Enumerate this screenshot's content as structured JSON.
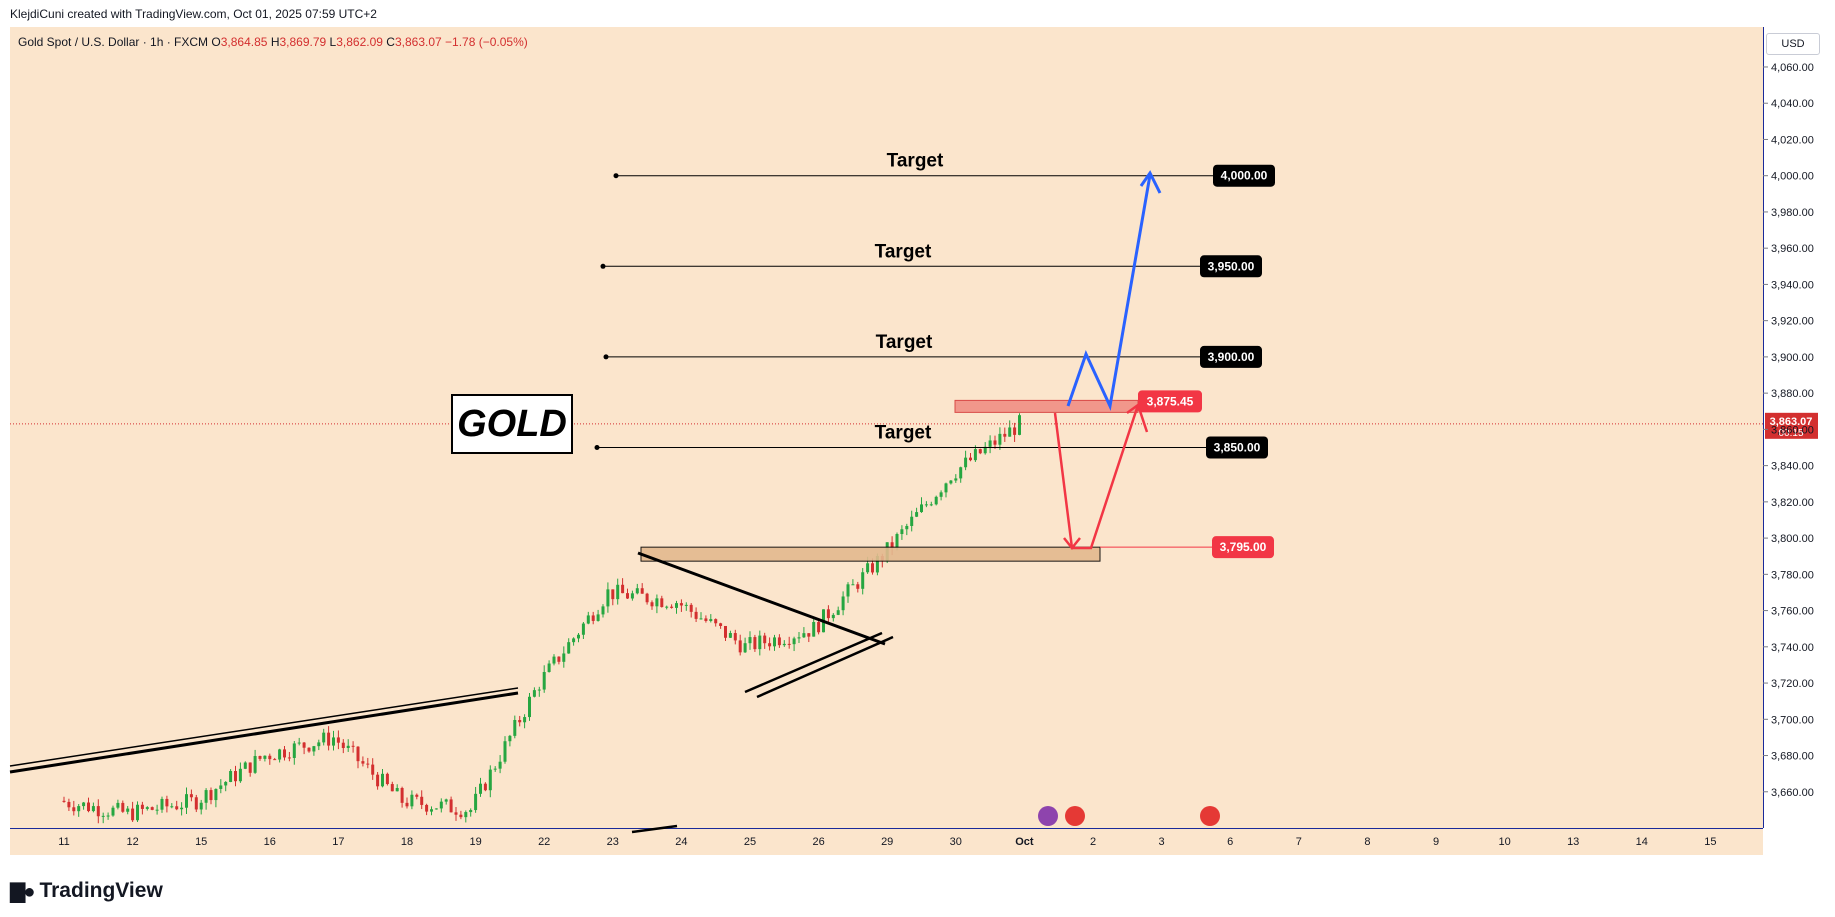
{
  "header": {
    "attribution": "KlejdiCuni created with TradingView.com, Oct 01, 2025 07:59 UTC+2"
  },
  "legend": {
    "symbol": "Gold Spot / U.S. Dollar · 1h · FXCM",
    "open_label": "O",
    "open": "3,864.85",
    "high_label": "H",
    "high": "3,869.79",
    "low_label": "L",
    "low": "3,862.09",
    "close_label": "C",
    "close": "3,863.07",
    "change": "−1.78 (−0.05%)"
  },
  "currency": "USD",
  "current_price": {
    "value": "3,863.07",
    "countdown": "00:15"
  },
  "annotation_title": "GOLD",
  "footer": {
    "brand": "TradingView"
  },
  "colors": {
    "background": "#fbe5cc",
    "bull_candle": "#26a641",
    "bear_candle": "#d32f2f",
    "resistance_zone": "#f08a80",
    "support_zone": "#e3b98f",
    "bullish_path": "#2962ff",
    "bearish_path": "#f23645",
    "axis_line": "#1a2a9a"
  },
  "chart_data": {
    "type": "candlestick",
    "symbol": "XAUUSD",
    "timeframe": "1h",
    "ylim": [
      3650,
      4070
    ],
    "y_ticks": [
      "4,060.00",
      "4,040.00",
      "4,020.00",
      "4,000.00",
      "3,980.00",
      "3,960.00",
      "3,940.00",
      "3,920.00",
      "3,900.00",
      "3,880.00",
      "3,860.00",
      "3,840.00",
      "3,820.00",
      "3,800.00",
      "3,780.00",
      "3,760.00",
      "3,740.00",
      "3,720.00",
      "3,700.00",
      "3,680.00",
      "3,660.00"
    ],
    "x_ticks": [
      "11",
      "12",
      "15",
      "16",
      "17",
      "18",
      "19",
      "22",
      "23",
      "24",
      "25",
      "26",
      "29",
      "30",
      "Oct",
      "2",
      "3",
      "6",
      "7",
      "8",
      "9",
      "10",
      "13",
      "14",
      "15"
    ],
    "price_path_daily_close": [
      {
        "date": "11",
        "close": 3655
      },
      {
        "date": "12",
        "close": 3648
      },
      {
        "date": "15",
        "close": 3655
      },
      {
        "date": "16",
        "close": 3680
      },
      {
        "date": "17",
        "close": 3690
      },
      {
        "date": "18",
        "close": 3655
      },
      {
        "date": "19",
        "close": 3650
      },
      {
        "date": "22",
        "close": 3720
      },
      {
        "date": "23",
        "close": 3770
      },
      {
        "date": "24",
        "close": 3765
      },
      {
        "date": "25",
        "close": 3740
      },
      {
        "date": "26",
        "close": 3750
      },
      {
        "date": "29",
        "close": 3790
      },
      {
        "date": "30",
        "close": 3835
      },
      {
        "date": "Oct",
        "close": 3863
      }
    ],
    "levels": [
      {
        "label": "Target",
        "price": "4,000.00"
      },
      {
        "label": "Target",
        "price": "3,950.00"
      },
      {
        "label": "Target",
        "price": "3,900.00"
      },
      {
        "label": "Target",
        "price": "3,850.00"
      }
    ],
    "resistance": {
      "price": "3,875.45"
    },
    "support": {
      "price": "3,795.00"
    },
    "current": 3863.07
  }
}
